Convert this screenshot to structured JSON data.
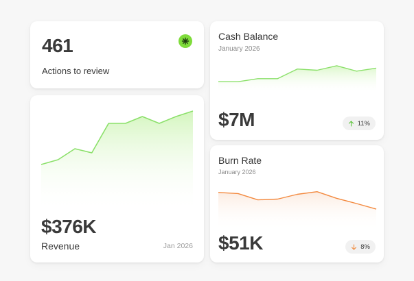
{
  "actions": {
    "count": "461",
    "label": "Actions to review",
    "badge_icon": "asterisk-icon",
    "badge_color": "#7fdc3b"
  },
  "revenue": {
    "value": "$376K",
    "label": "Revenue",
    "date": "Jan 2026",
    "line_color": "#8be06a"
  },
  "cash": {
    "title": "Cash Balance",
    "date": "January 2026",
    "value": "$7M",
    "change": "11%",
    "change_icon": "arrow-up-icon",
    "change_color": "#5cc43a",
    "line_color": "#8be06a"
  },
  "burn": {
    "title": "Burn Rate",
    "date": "January 2026",
    "value": "$51K",
    "change": "8%",
    "change_icon": "arrow-down-icon",
    "change_color": "#f08a3c",
    "line_color": "#f3893e"
  },
  "chart_data": [
    {
      "type": "area",
      "title": "Revenue",
      "x": [
        1,
        2,
        3,
        4,
        5,
        6,
        7,
        8,
        9,
        10
      ],
      "values": [
        10,
        17,
        33,
        27,
        70,
        70,
        80,
        70,
        80,
        88
      ],
      "ylim": [
        0,
        100
      ]
    },
    {
      "type": "area",
      "title": "Cash Balance",
      "x": [
        1,
        2,
        3,
        4,
        5,
        6,
        7,
        8,
        9
      ],
      "values": [
        20,
        20,
        30,
        30,
        62,
        58,
        73,
        55,
        65
      ],
      "ylim": [
        0,
        100
      ]
    },
    {
      "type": "area",
      "title": "Burn Rate",
      "x": [
        1,
        2,
        3,
        4,
        5,
        6,
        7,
        8,
        9
      ],
      "values": [
        80,
        77,
        60,
        62,
        75,
        82,
        64,
        50,
        35
      ],
      "ylim": [
        0,
        100
      ]
    }
  ]
}
